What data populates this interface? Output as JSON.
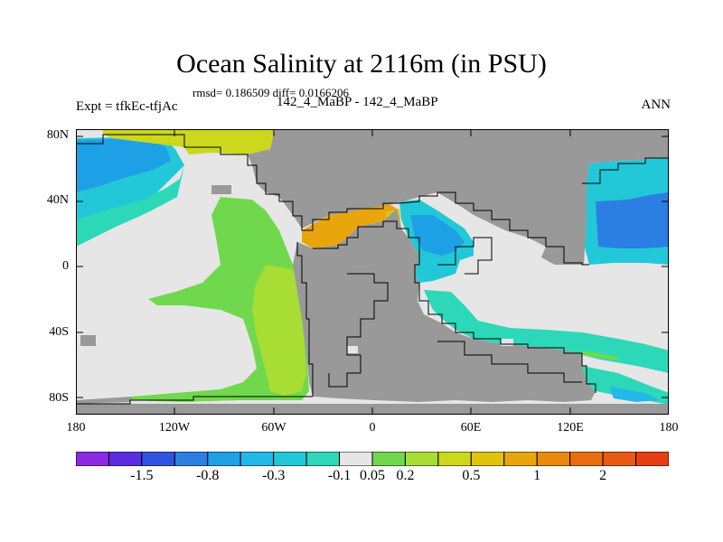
{
  "title": "Ocean Salinity at 2116m (in PSU)",
  "stats": "rmsd= 0.186509 diff= 0.0166206",
  "experiment": "Expt = tfkEc-tfjAc",
  "period": "142_4_MaBP - 142_4_MaBP",
  "season": "ANN",
  "y_ticks": [
    "80N",
    "40N",
    "0",
    "40S",
    "80S"
  ],
  "x_ticks": [
    "180",
    "120W",
    "60W",
    "0",
    "60E",
    "120E",
    "180"
  ],
  "colorbar": {
    "colors": [
      "#8a2be2",
      "#5a2ee0",
      "#2f55e0",
      "#2b7fe2",
      "#1ea0e6",
      "#22b8e8",
      "#22c8d8",
      "#2dd8b8",
      "#e6e6e6",
      "#70d84c",
      "#a8dd34",
      "#ccd81c",
      "#e0c40c",
      "#e8a50c",
      "#ea8a0c",
      "#ea6e10",
      "#e85a14",
      "#e83e14"
    ],
    "labels": [
      "-1.5",
      "-0.8",
      "-0.3",
      "-0.1",
      "0.05",
      "0.2",
      "0.5",
      "1",
      "2"
    ]
  },
  "colors": {
    "land": "#999999",
    "ocean_neutral": "#e6e6e6"
  }
}
